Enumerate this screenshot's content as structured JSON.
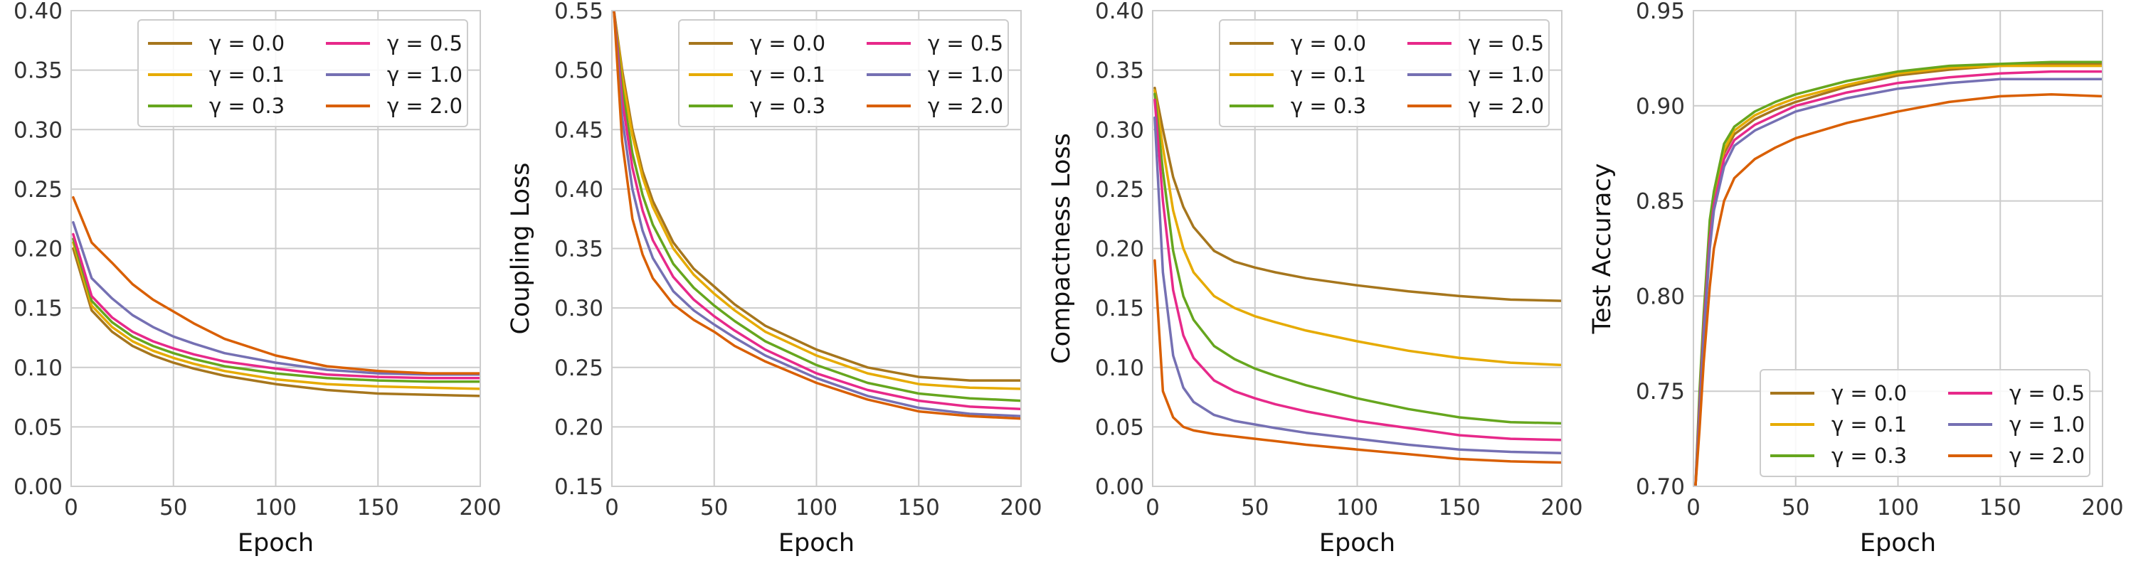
{
  "colors": {
    "gamma_0.0": "#a6761d",
    "gamma_0.1": "#e6ab02",
    "gamma_0.3": "#66a61e",
    "gamma_0.5": "#e7298a",
    "gamma_1.0": "#7570b3",
    "gamma_2.0": "#d95f02"
  },
  "chart_data": [
    {
      "type": "line",
      "xlabel": "Epoch",
      "ylabel": "",
      "xlim": [
        0,
        200
      ],
      "ylim": [
        0.0,
        0.4
      ],
      "xticks": [
        "0",
        "50",
        "100",
        "150",
        "200"
      ],
      "yticks": [
        "0.00",
        "0.05",
        "0.10",
        "0.15",
        "0.20",
        "0.25",
        "0.30",
        "0.35",
        "0.40"
      ],
      "grid": true,
      "legend_position": "top-right",
      "x": [
        1,
        10,
        20,
        30,
        40,
        50,
        60,
        75,
        100,
        125,
        150,
        175,
        200
      ],
      "series": [
        {
          "name": "γ = 0.0",
          "values": [
            0.2,
            0.148,
            0.13,
            0.118,
            0.11,
            0.104,
            0.099,
            0.093,
            0.086,
            0.081,
            0.078,
            0.077,
            0.076
          ]
        },
        {
          "name": "γ = 0.1",
          "values": [
            0.205,
            0.152,
            0.134,
            0.122,
            0.114,
            0.108,
            0.103,
            0.097,
            0.09,
            0.086,
            0.084,
            0.083,
            0.082
          ]
        },
        {
          "name": "γ = 0.3",
          "values": [
            0.208,
            0.156,
            0.138,
            0.126,
            0.118,
            0.112,
            0.107,
            0.101,
            0.095,
            0.091,
            0.089,
            0.088,
            0.088
          ]
        },
        {
          "name": "γ = 0.5",
          "values": [
            0.212,
            0.16,
            0.142,
            0.13,
            0.122,
            0.116,
            0.111,
            0.105,
            0.099,
            0.094,
            0.092,
            0.091,
            0.091
          ]
        },
        {
          "name": "γ = 1.0",
          "values": [
            0.222,
            0.175,
            0.158,
            0.144,
            0.134,
            0.126,
            0.12,
            0.112,
            0.104,
            0.098,
            0.095,
            0.094,
            0.094
          ]
        },
        {
          "name": "γ = 2.0",
          "values": [
            0.243,
            0.205,
            0.188,
            0.17,
            0.157,
            0.147,
            0.137,
            0.124,
            0.11,
            0.101,
            0.097,
            0.095,
            0.095
          ]
        }
      ]
    },
    {
      "type": "line",
      "xlabel": "Epoch",
      "ylabel": "Coupling Loss",
      "xlim": [
        0,
        200
      ],
      "ylim": [
        0.15,
        0.55
      ],
      "xticks": [
        "0",
        "50",
        "100",
        "150",
        "200"
      ],
      "yticks": [
        "0.15",
        "0.20",
        "0.25",
        "0.30",
        "0.35",
        "0.40",
        "0.45",
        "0.50",
        "0.55"
      ],
      "grid": true,
      "legend_position": "top-right",
      "x": [
        1,
        5,
        10,
        15,
        20,
        30,
        40,
        50,
        60,
        75,
        100,
        125,
        150,
        175,
        200
      ],
      "series": [
        {
          "name": "γ = 0.0",
          "values": [
            0.55,
            0.5,
            0.45,
            0.415,
            0.39,
            0.355,
            0.333,
            0.318,
            0.303,
            0.285,
            0.265,
            0.25,
            0.242,
            0.239,
            0.239
          ]
        },
        {
          "name": "γ = 0.1",
          "values": [
            0.55,
            0.495,
            0.445,
            0.41,
            0.385,
            0.35,
            0.328,
            0.312,
            0.298,
            0.28,
            0.26,
            0.245,
            0.236,
            0.233,
            0.232
          ]
        },
        {
          "name": "γ = 0.3",
          "values": [
            0.55,
            0.485,
            0.43,
            0.395,
            0.37,
            0.337,
            0.317,
            0.302,
            0.289,
            0.272,
            0.252,
            0.237,
            0.228,
            0.224,
            0.222
          ]
        },
        {
          "name": "γ = 0.5",
          "values": [
            0.55,
            0.475,
            0.418,
            0.382,
            0.357,
            0.326,
            0.307,
            0.293,
            0.281,
            0.265,
            0.245,
            0.231,
            0.222,
            0.217,
            0.215
          ]
        },
        {
          "name": "γ = 1.0",
          "values": [
            0.55,
            0.46,
            0.4,
            0.365,
            0.342,
            0.314,
            0.298,
            0.286,
            0.275,
            0.26,
            0.241,
            0.226,
            0.216,
            0.211,
            0.209
          ]
        },
        {
          "name": "γ = 2.0",
          "values": [
            0.55,
            0.44,
            0.375,
            0.345,
            0.325,
            0.303,
            0.29,
            0.28,
            0.268,
            0.255,
            0.237,
            0.223,
            0.213,
            0.209,
            0.207
          ]
        }
      ]
    },
    {
      "type": "line",
      "xlabel": "Epoch",
      "ylabel": "Compactness Loss",
      "xlim": [
        0,
        200
      ],
      "ylim": [
        0.0,
        0.4
      ],
      "xticks": [
        "0",
        "50",
        "100",
        "150",
        "200"
      ],
      "yticks": [
        "0.00",
        "0.05",
        "0.10",
        "0.15",
        "0.20",
        "0.25",
        "0.30",
        "0.35",
        "0.40"
      ],
      "grid": true,
      "legend_position": "top-right",
      "x": [
        1,
        5,
        10,
        15,
        20,
        30,
        40,
        50,
        60,
        75,
        100,
        125,
        150,
        175,
        200
      ],
      "series": [
        {
          "name": "γ = 0.0",
          "values": [
            0.335,
            0.3,
            0.26,
            0.235,
            0.218,
            0.198,
            0.189,
            0.184,
            0.18,
            0.175,
            0.169,
            0.164,
            0.16,
            0.157,
            0.156
          ]
        },
        {
          "name": "γ = 0.1",
          "values": [
            0.333,
            0.285,
            0.232,
            0.2,
            0.18,
            0.16,
            0.15,
            0.143,
            0.138,
            0.131,
            0.122,
            0.114,
            0.108,
            0.104,
            0.102
          ]
        },
        {
          "name": "γ = 0.3",
          "values": [
            0.33,
            0.265,
            0.198,
            0.16,
            0.14,
            0.118,
            0.107,
            0.099,
            0.093,
            0.085,
            0.074,
            0.065,
            0.058,
            0.054,
            0.053
          ]
        },
        {
          "name": "γ = 0.5",
          "values": [
            0.325,
            0.24,
            0.165,
            0.127,
            0.108,
            0.089,
            0.08,
            0.074,
            0.069,
            0.063,
            0.055,
            0.049,
            0.043,
            0.04,
            0.039
          ]
        },
        {
          "name": "γ = 1.0",
          "values": [
            0.31,
            0.18,
            0.11,
            0.083,
            0.071,
            0.06,
            0.055,
            0.052,
            0.049,
            0.045,
            0.04,
            0.035,
            0.031,
            0.029,
            0.028
          ]
        },
        {
          "name": "γ = 2.0",
          "values": [
            0.19,
            0.08,
            0.058,
            0.05,
            0.047,
            0.044,
            0.042,
            0.04,
            0.038,
            0.035,
            0.031,
            0.027,
            0.023,
            0.021,
            0.02
          ]
        }
      ]
    },
    {
      "type": "line",
      "xlabel": "Epoch",
      "ylabel": "Test Accuracy",
      "xlim": [
        0,
        200
      ],
      "ylim": [
        0.7,
        0.95
      ],
      "xticks": [
        "0",
        "50",
        "100",
        "150",
        "200"
      ],
      "yticks": [
        "0.70",
        "0.75",
        "0.80",
        "0.85",
        "0.90",
        "0.95"
      ],
      "grid": true,
      "legend_position": "bottom-right",
      "x": [
        1,
        3,
        5,
        8,
        10,
        15,
        20,
        30,
        40,
        50,
        75,
        100,
        125,
        150,
        175,
        200
      ],
      "series": [
        {
          "name": "γ = 0.0",
          "values": [
            0.7,
            0.74,
            0.78,
            0.83,
            0.85,
            0.875,
            0.885,
            0.893,
            0.898,
            0.902,
            0.91,
            0.916,
            0.919,
            0.921,
            0.922,
            0.922
          ]
        },
        {
          "name": "γ = 0.1",
          "values": [
            0.7,
            0.745,
            0.785,
            0.835,
            0.852,
            0.877,
            0.887,
            0.895,
            0.9,
            0.904,
            0.911,
            0.917,
            0.92,
            0.921,
            0.921,
            0.921
          ]
        },
        {
          "name": "γ = 0.3",
          "values": [
            0.7,
            0.75,
            0.79,
            0.84,
            0.855,
            0.88,
            0.889,
            0.897,
            0.902,
            0.906,
            0.913,
            0.918,
            0.921,
            0.922,
            0.923,
            0.923
          ]
        },
        {
          "name": "γ = 0.5",
          "values": [
            0.7,
            0.742,
            0.782,
            0.83,
            0.848,
            0.872,
            0.882,
            0.89,
            0.895,
            0.9,
            0.907,
            0.912,
            0.915,
            0.917,
            0.918,
            0.918
          ]
        },
        {
          "name": "γ = 1.0",
          "values": [
            0.7,
            0.738,
            0.778,
            0.825,
            0.845,
            0.868,
            0.879,
            0.887,
            0.892,
            0.897,
            0.904,
            0.909,
            0.912,
            0.914,
            0.914,
            0.914
          ]
        },
        {
          "name": "γ = 2.0",
          "values": [
            0.7,
            0.73,
            0.765,
            0.805,
            0.825,
            0.85,
            0.862,
            0.872,
            0.878,
            0.883,
            0.891,
            0.897,
            0.902,
            0.905,
            0.906,
            0.905
          ]
        }
      ]
    }
  ]
}
